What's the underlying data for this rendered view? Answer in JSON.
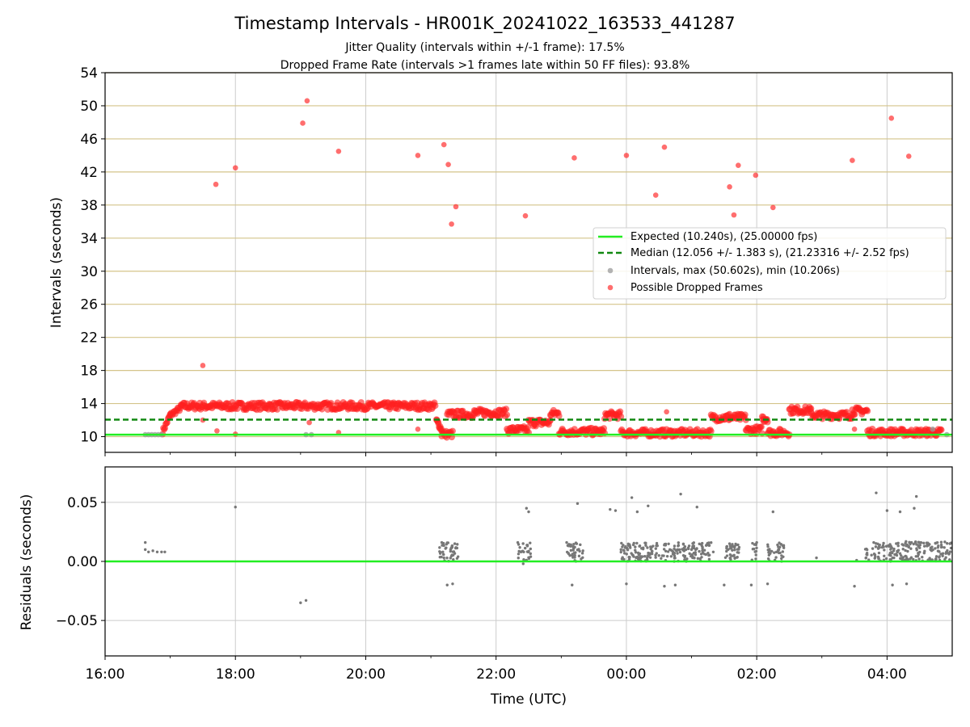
{
  "title": "Timestamp Intervals - HR001K_20241022_163533_441287",
  "subtitle_1": "Jitter Quality (intervals within +/-1 frame): 17.5%",
  "subtitle_2": "Dropped Frame Rate (intervals >1 frames late within 50 FF files): 93.8%",
  "colors": {
    "expected": "#22ee22",
    "median": "#118811",
    "intervals": "#999999",
    "dropped": "#ff2020",
    "residual": "#777777",
    "hgrid_top": "#d4c48a",
    "grid": "#cccccc"
  },
  "chart_data": [
    {
      "type": "scatter",
      "panel": "intervals",
      "ylabel": "Intervals (seconds)",
      "xlabel": "",
      "y_ticks": [
        "10",
        "14",
        "18",
        "22",
        "26",
        "30",
        "34",
        "38",
        "42",
        "46",
        "50",
        "54"
      ],
      "ylim": [
        8.1,
        54
      ],
      "xlim": [
        "16:00",
        "05:00 (+1 day)"
      ],
      "x_tick_labels": [
        "16:00",
        "18:00",
        "20:00",
        "22:00",
        "00:00",
        "02:00",
        "04:00"
      ],
      "grid": "horizontal gold lines, vertical gray lines",
      "legend_position": "center-right",
      "legend": [
        "Expected (10.240s), (25.00000 fps)",
        "Median (12.056 +/- 1.383 s), (21.23316 +/- 2.52 fps)",
        "Intervals, max (50.602s), min (10.206s)",
        "Possible Dropped Frames"
      ],
      "expected_value": 10.24,
      "median_value": 12.056,
      "series": [
        {
          "name": "Intervals, max (50.602s), min (10.206s)",
          "points": [
            [
              "16:37",
              10.24
            ],
            [
              "16:40",
              10.24
            ],
            [
              "16:43",
              10.24
            ],
            [
              "16:46",
              10.24
            ],
            [
              "16:49",
              10.24
            ],
            [
              "16:52",
              10.24
            ],
            [
              "19:05",
              10.24
            ],
            [
              "19:10",
              10.24
            ],
            [
              "04:42",
              10.9
            ],
            [
              "04:55",
              10.24
            ]
          ]
        },
        {
          "name": "Possible Dropped Frames",
          "outliers": [
            [
              "17:30",
              18.6
            ],
            [
              "17:42",
              40.5
            ],
            [
              "18:00",
              42.5
            ],
            [
              "19:02",
              47.9
            ],
            [
              "19:06",
              50.6
            ],
            [
              "19:35",
              44.5
            ],
            [
              "20:48",
              44.0
            ],
            [
              "21:12",
              45.3
            ],
            [
              "21:16",
              42.9
            ],
            [
              "21:19",
              35.7
            ],
            [
              "21:23",
              37.8
            ],
            [
              "22:27",
              36.7
            ],
            [
              "23:12",
              43.7
            ],
            [
              "00:00",
              44.0
            ],
            [
              "00:27",
              39.2
            ],
            [
              "00:35",
              45.0
            ],
            [
              "01:35",
              40.2
            ],
            [
              "01:39",
              36.8
            ],
            [
              "01:43",
              42.8
            ],
            [
              "01:59",
              41.6
            ],
            [
              "02:15",
              37.7
            ],
            [
              "03:28",
              43.4
            ],
            [
              "04:04",
              48.5
            ],
            [
              "04:20",
              43.9
            ],
            [
              "17:30",
              12.0
            ],
            [
              "17:43",
              10.7
            ],
            [
              "18:00",
              10.3
            ],
            [
              "19:08",
              11.7
            ],
            [
              "19:35",
              10.5
            ],
            [
              "20:48",
              10.9
            ],
            [
              "00:37",
              13.0
            ],
            [
              "01:35",
              12.8
            ],
            [
              "03:30",
              10.9
            ]
          ],
          "segments": [
            {
              "from": "16:53",
              "to": "17:00",
              "value_from": 10.6,
              "value_to": 12.6
            },
            {
              "from": "17:00",
              "to": "17:10",
              "value_from": 12.6,
              "value_to": 13.5
            },
            {
              "from": "17:10",
              "to": "21:04",
              "value": 13.7
            },
            {
              "from": "21:05",
              "to": "21:10",
              "value_from": 12.0,
              "value_to": 10.8
            },
            {
              "from": "21:10",
              "to": "21:20",
              "value": 10.3
            },
            {
              "from": "21:15",
              "to": "21:40",
              "value": 12.7
            },
            {
              "from": "21:40",
              "to": "22:10",
              "value": 12.9
            },
            {
              "from": "22:10",
              "to": "22:30",
              "value": 10.8
            },
            {
              "from": "22:30",
              "to": "22:50",
              "value": 11.7
            },
            {
              "from": "22:50",
              "to": "22:58",
              "value": 12.8
            },
            {
              "from": "22:58",
              "to": "23:40",
              "value": 10.6
            },
            {
              "from": "23:40",
              "to": "23:55",
              "value": 12.6
            },
            {
              "from": "23:55",
              "to": "01:18",
              "value": 10.45
            },
            {
              "from": "01:18",
              "to": "01:50",
              "value": 12.3
            },
            {
              "from": "01:50",
              "to": "02:05",
              "value": 10.8
            },
            {
              "from": "02:05",
              "to": "02:10",
              "value": 12.2
            },
            {
              "from": "02:10",
              "to": "02:30",
              "value": 10.5
            },
            {
              "from": "02:30",
              "to": "02:50",
              "value": 13.2
            },
            {
              "from": "02:50",
              "to": "03:28",
              "value": 12.6
            },
            {
              "from": "03:28",
              "to": "03:42",
              "value": 13.1
            },
            {
              "from": "03:42",
              "to": "04:50",
              "value": 10.5
            }
          ]
        }
      ]
    },
    {
      "type": "scatter",
      "panel": "residuals",
      "ylabel": "Residuals (seconds)",
      "xlabel": "Time (UTC)",
      "y_ticks": [
        "0.05",
        "0.00",
        "−0.05"
      ],
      "ylim": [
        -0.08,
        0.08
      ],
      "xlim": [
        "16:00",
        "05:00 (+1 day)"
      ],
      "x_tick_labels": [
        "16:00",
        "18:00",
        "20:00",
        "22:00",
        "00:00",
        "02:00",
        "04:00"
      ],
      "grid": "on",
      "series": [
        {
          "name": "",
          "points": [
            [
              "16:37",
              0.016
            ],
            [
              "16:37",
              0.01
            ],
            [
              "16:40",
              0.008
            ],
            [
              "16:44",
              0.009
            ],
            [
              "16:48",
              0.008
            ],
            [
              "16:52",
              0.008
            ],
            [
              "16:55",
              0.008
            ],
            [
              "18:00",
              0.046
            ],
            [
              "19:00",
              -0.035
            ],
            [
              "19:05",
              -0.033
            ],
            [
              "21:10",
              0.016
            ],
            [
              "21:11",
              0.008
            ],
            [
              "21:12",
              0.003
            ],
            [
              "21:15",
              -0.02
            ],
            [
              "21:20",
              -0.019
            ],
            [
              "21:22",
              0.015
            ],
            [
              "21:25",
              0.004
            ],
            [
              "22:20",
              0.016
            ],
            [
              "22:23",
              0.008
            ],
            [
              "22:25",
              -0.002
            ],
            [
              "22:28",
              0.045
            ],
            [
              "22:30",
              0.042
            ],
            [
              "23:05",
              0.016
            ],
            [
              "23:08",
              0.005
            ],
            [
              "23:10",
              -0.02
            ],
            [
              "23:15",
              0.049
            ],
            [
              "23:20",
              0.009
            ],
            [
              "23:45",
              0.044
            ],
            [
              "23:50",
              0.043
            ],
            [
              "23:55",
              0.01
            ],
            [
              "00:00",
              -0.019
            ],
            [
              "00:05",
              0.054
            ],
            [
              "00:10",
              0.042
            ],
            [
              "00:20",
              0.047
            ],
            [
              "00:30",
              0.005
            ],
            [
              "00:35",
              -0.021
            ],
            [
              "00:40",
              0.01
            ],
            [
              "00:45",
              -0.02
            ],
            [
              "00:50",
              0.057
            ],
            [
              "01:00",
              0.01
            ],
            [
              "01:05",
              0.046
            ],
            [
              "01:10",
              0.009
            ],
            [
              "01:20",
              0.008
            ],
            [
              "01:30",
              -0.02
            ],
            [
              "01:35",
              0.015
            ],
            [
              "01:40",
              0.003
            ],
            [
              "01:55",
              -0.02
            ],
            [
              "02:00",
              0.016
            ],
            [
              "02:10",
              -0.019
            ],
            [
              "02:15",
              0.042
            ],
            [
              "02:20",
              0.01
            ],
            [
              "02:55",
              0.003
            ],
            [
              "03:30",
              -0.021
            ],
            [
              "03:32",
              0.001
            ],
            [
              "03:50",
              0.058
            ],
            [
              "04:00",
              0.043
            ],
            [
              "04:05",
              -0.02
            ],
            [
              "04:12",
              0.042
            ],
            [
              "04:18",
              -0.019
            ],
            [
              "04:25",
              0.045
            ],
            [
              "04:27",
              0.055
            ],
            [
              "04:30",
              0.016
            ],
            [
              "04:40",
              0.01
            ],
            [
              "04:50",
              0.012
            ],
            [
              "04:58",
              0.015
            ]
          ],
          "clusters": [
            {
              "from": "21:08",
              "to": "21:25",
              "value_from": 0.0,
              "value_to": 0.016
            },
            {
              "from": "22:20",
              "to": "22:32",
              "value_from": 0.0,
              "value_to": 0.016
            },
            {
              "from": "23:05",
              "to": "23:20",
              "value_from": 0.0,
              "value_to": 0.016
            },
            {
              "from": "23:55",
              "to": "01:18",
              "value_from": 0.0,
              "value_to": 0.016
            },
            {
              "from": "01:30",
              "to": "01:45",
              "value_from": 0.0,
              "value_to": 0.015
            },
            {
              "from": "01:55",
              "to": "02:00",
              "value_from": 0.0,
              "value_to": 0.016
            },
            {
              "from": "02:10",
              "to": "02:25",
              "value_from": 0.0,
              "value_to": 0.016
            },
            {
              "from": "03:40",
              "to": "05:00",
              "value_from": 0.0,
              "value_to": 0.017
            }
          ]
        }
      ],
      "reference_line": 0.0
    }
  ]
}
